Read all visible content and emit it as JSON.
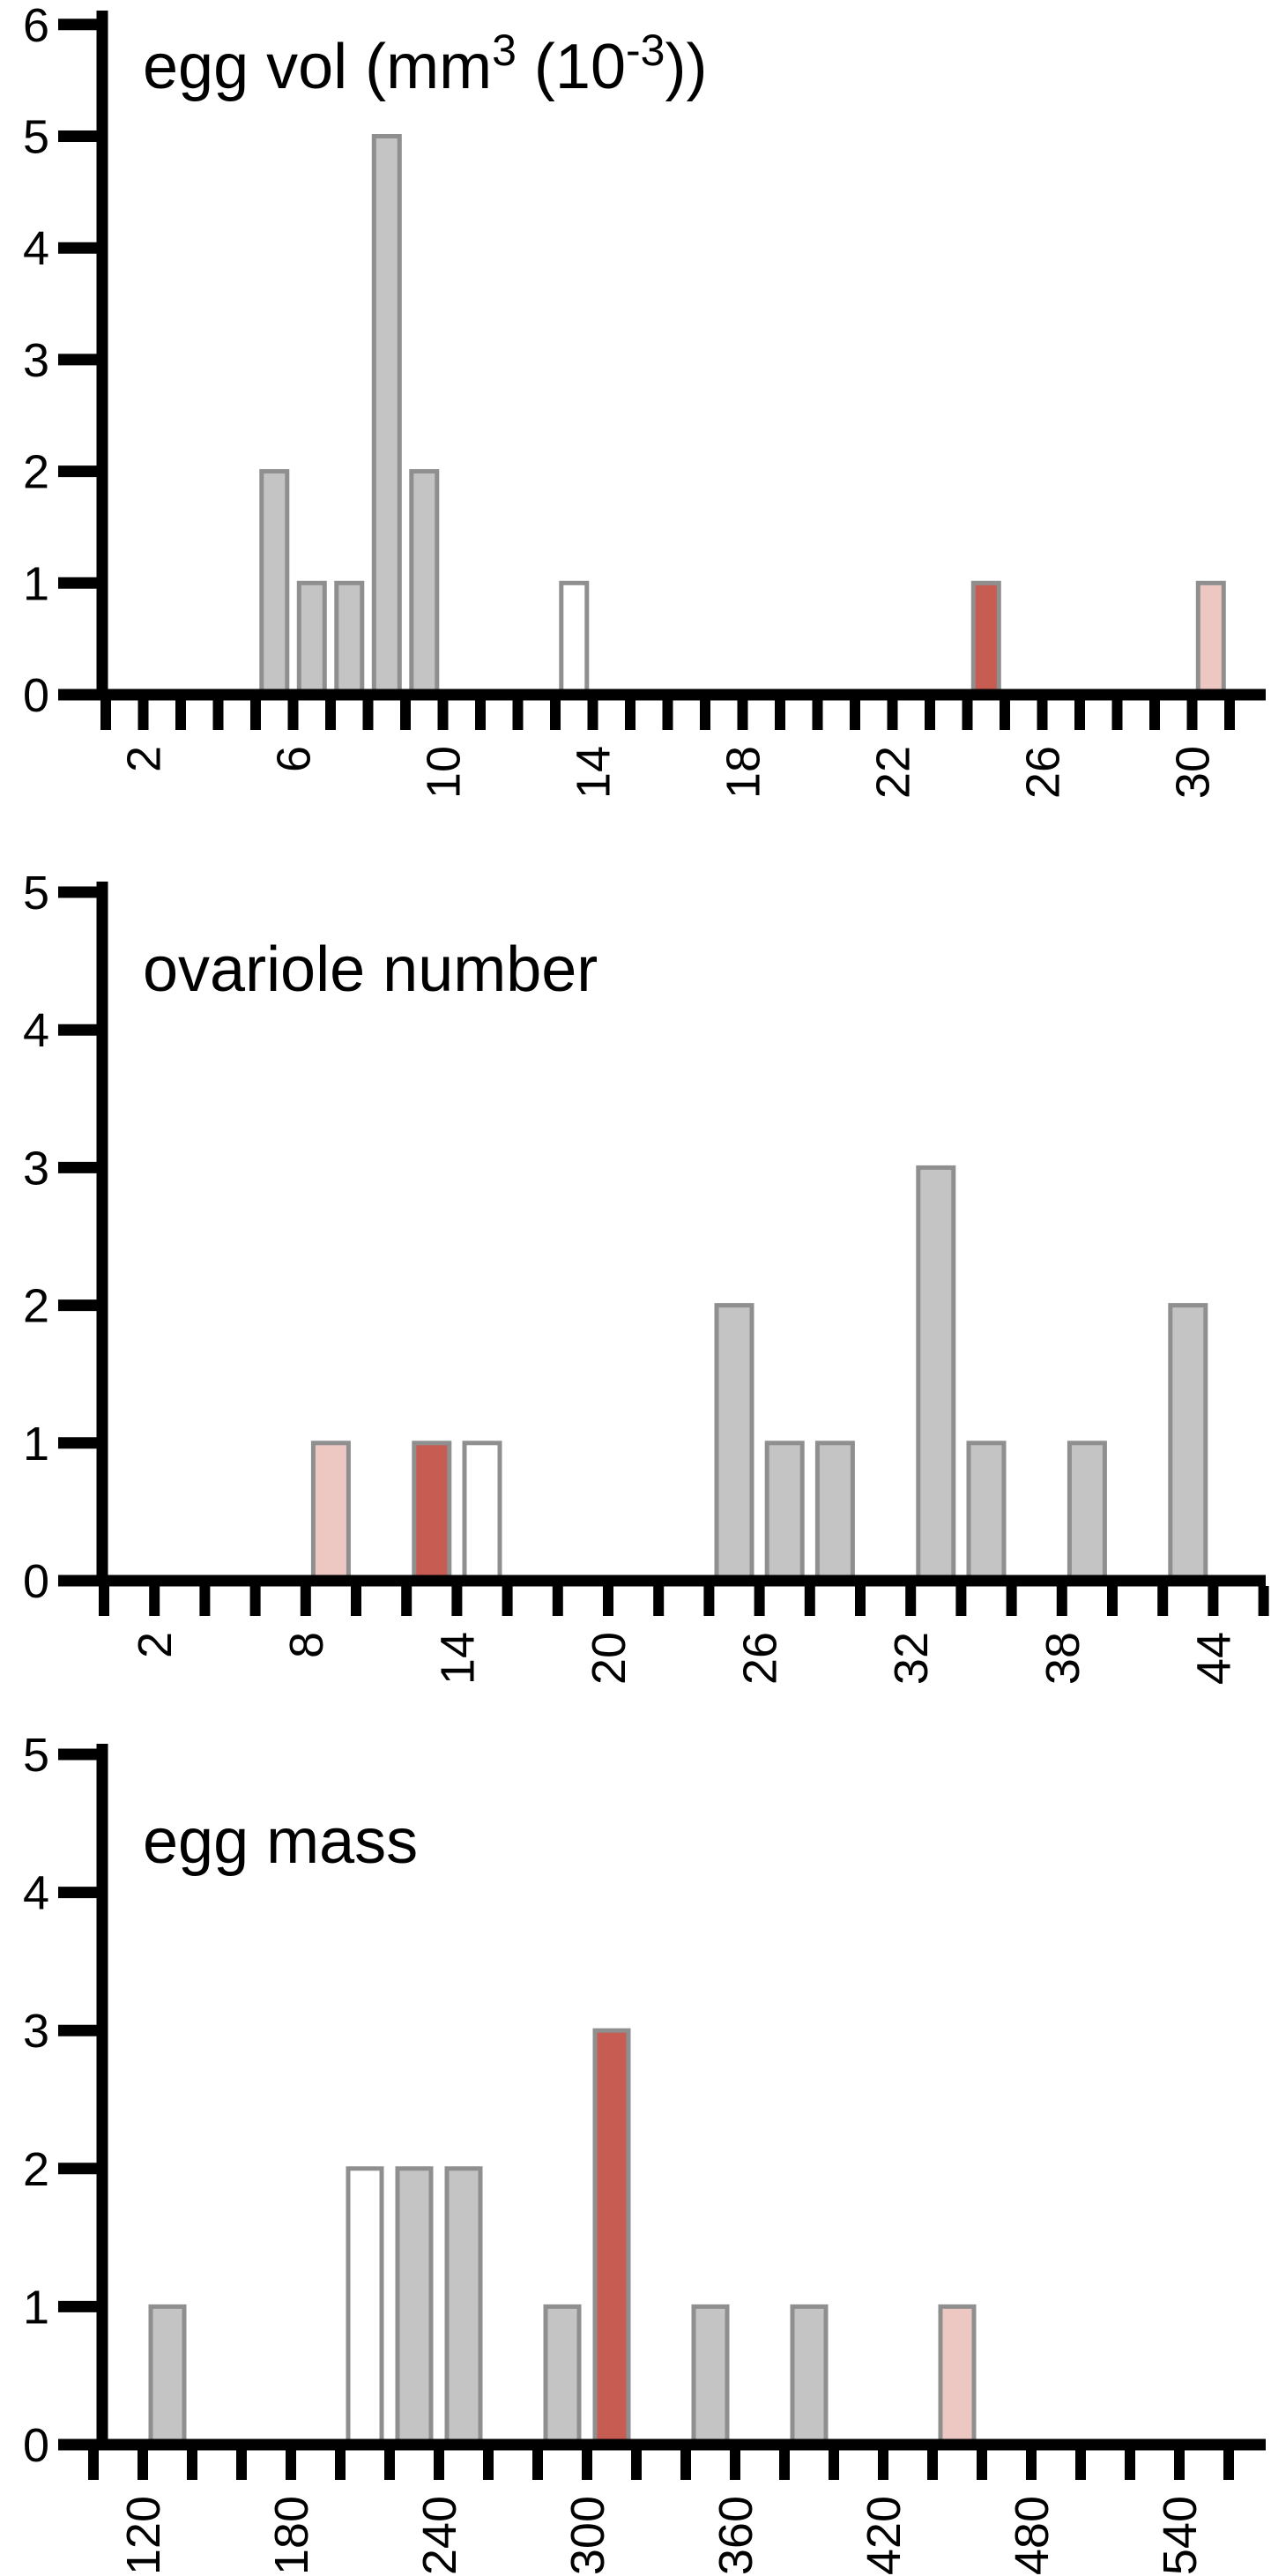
{
  "figure": {
    "background": "#ffffff",
    "description": "Three stacked histograms"
  },
  "palette": {
    "gray": "#c4c4c4",
    "white": "#ffffff",
    "red": "#c75c53",
    "pink": "#edc8c3",
    "bar_border": "#8f8f8f",
    "axis": "#000000",
    "text": "#000000"
  },
  "chart_data": [
    {
      "type": "bar",
      "title": "egg vol (mm³ (10⁻³))",
      "title_segments": [
        {
          "text": "egg vol (mm"
        },
        {
          "text": "3",
          "sup": true
        },
        {
          "text": " (10"
        },
        {
          "text": "-3",
          "sup": true
        },
        {
          "text": "))"
        }
      ],
      "xlabel": "",
      "ylabel": "",
      "ylim": [
        0,
        6
      ],
      "xlim": [
        0.9,
        32
      ],
      "grid": false,
      "legend": false,
      "yticks": [
        {
          "v": 0,
          "t": "0"
        },
        {
          "v": 1,
          "t": "1"
        },
        {
          "v": 2,
          "t": "2"
        },
        {
          "v": 3,
          "t": "3"
        },
        {
          "v": 4,
          "t": "4"
        },
        {
          "v": 5,
          "t": "5"
        },
        {
          "v": 6,
          "t": "6"
        }
      ],
      "minor_xticks": {
        "from": 1,
        "to": 31,
        "step": 1
      },
      "xtick_labels": [
        {
          "v": 2,
          "t": "2"
        },
        {
          "v": 6,
          "t": "6"
        },
        {
          "v": 10,
          "t": "10"
        },
        {
          "v": 14,
          "t": "14"
        },
        {
          "v": 18,
          "t": "18"
        },
        {
          "v": 22,
          "t": "22"
        },
        {
          "v": 26,
          "t": "26"
        },
        {
          "v": 30,
          "t": "30"
        }
      ],
      "bin_width": 1,
      "bars": [
        {
          "x": 5.5,
          "count": 2,
          "color": "gray"
        },
        {
          "x": 6.5,
          "count": 1,
          "color": "gray"
        },
        {
          "x": 7.5,
          "count": 1,
          "color": "gray"
        },
        {
          "x": 8.5,
          "count": 5,
          "color": "gray"
        },
        {
          "x": 9.5,
          "count": 2,
          "color": "gray"
        },
        {
          "x": 13.5,
          "count": 1,
          "color": "white"
        },
        {
          "x": 24.5,
          "count": 1,
          "color": "red"
        },
        {
          "x": 30.5,
          "count": 1,
          "color": "pink"
        }
      ]
    },
    {
      "type": "bar",
      "title": "ovariole number",
      "title_segments": [
        {
          "text": "ovariole number"
        }
      ],
      "xlabel": "",
      "ylabel": "",
      "ylim": [
        0,
        5
      ],
      "xlim": [
        0,
        46.1
      ],
      "grid": false,
      "legend": false,
      "yticks": [
        {
          "v": 0,
          "t": "0"
        },
        {
          "v": 1,
          "t": "1"
        },
        {
          "v": 2,
          "t": "2"
        },
        {
          "v": 3,
          "t": "3"
        },
        {
          "v": 4,
          "t": "4"
        },
        {
          "v": 5,
          "t": "5"
        }
      ],
      "minor_xticks": {
        "from": 0,
        "to": 46,
        "step": 2
      },
      "xtick_labels": [
        {
          "v": 2,
          "t": "2"
        },
        {
          "v": 8,
          "t": "8"
        },
        {
          "v": 14,
          "t": "14"
        },
        {
          "v": 20,
          "t": "20"
        },
        {
          "v": 26,
          "t": "26"
        },
        {
          "v": 32,
          "t": "32"
        },
        {
          "v": 38,
          "t": "38"
        },
        {
          "v": 44,
          "t": "44"
        }
      ],
      "bin_width": 2,
      "bars": [
        {
          "x": 9,
          "count": 1,
          "color": "pink"
        },
        {
          "x": 13,
          "count": 1,
          "color": "red"
        },
        {
          "x": 15,
          "count": 1,
          "color": "white"
        },
        {
          "x": 25,
          "count": 2,
          "color": "gray"
        },
        {
          "x": 27,
          "count": 1,
          "color": "gray"
        },
        {
          "x": 29,
          "count": 1,
          "color": "gray"
        },
        {
          "x": 33,
          "count": 3,
          "color": "gray"
        },
        {
          "x": 35,
          "count": 1,
          "color": "gray"
        },
        {
          "x": 39,
          "count": 1,
          "color": "gray"
        },
        {
          "x": 43,
          "count": 2,
          "color": "gray"
        }
      ]
    },
    {
      "type": "bar",
      "title": "egg mass",
      "title_segments": [
        {
          "text": "egg mass"
        }
      ],
      "xlabel": "",
      "ylabel": "",
      "ylim": [
        0,
        5
      ],
      "xlim": [
        100,
        575
      ],
      "grid": false,
      "legend": false,
      "yticks": [
        {
          "v": 0,
          "t": "0"
        },
        {
          "v": 1,
          "t": "1"
        },
        {
          "v": 2,
          "t": "2"
        },
        {
          "v": 3,
          "t": "3"
        },
        {
          "v": 4,
          "t": "4"
        },
        {
          "v": 5,
          "t": "5"
        }
      ],
      "minor_xticks": {
        "from": 100,
        "to": 560,
        "step": 20
      },
      "xtick_labels": [
        {
          "v": 120,
          "t": "120"
        },
        {
          "v": 180,
          "t": "180"
        },
        {
          "v": 240,
          "t": "240"
        },
        {
          "v": 300,
          "t": "300"
        },
        {
          "v": 360,
          "t": "360"
        },
        {
          "v": 420,
          "t": "420"
        },
        {
          "v": 480,
          "t": "480"
        },
        {
          "v": 540,
          "t": "540"
        }
      ],
      "bin_width": 20,
      "bars": [
        {
          "x": 130,
          "count": 1,
          "color": "gray"
        },
        {
          "x": 210,
          "count": 2,
          "color": "white"
        },
        {
          "x": 230,
          "count": 2,
          "color": "gray"
        },
        {
          "x": 250,
          "count": 2,
          "color": "gray"
        },
        {
          "x": 290,
          "count": 1,
          "color": "gray"
        },
        {
          "x": 310,
          "count": 3,
          "color": "red"
        },
        {
          "x": 350,
          "count": 1,
          "color": "gray"
        },
        {
          "x": 390,
          "count": 1,
          "color": "gray"
        },
        {
          "x": 450,
          "count": 1,
          "color": "pink"
        }
      ]
    }
  ]
}
